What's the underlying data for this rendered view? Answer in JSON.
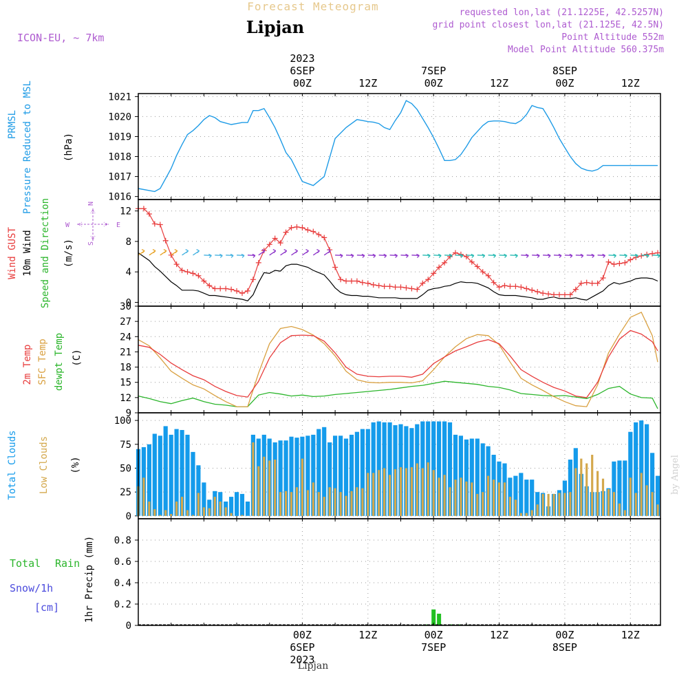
{
  "header": {
    "title": "Forecast Meteogram",
    "location": "Lipjan",
    "model": "ICON-EU, ~ 7km",
    "requested": "requested lon,lat (21.1225E, 42.5257N)",
    "grid_point": "grid point closest lon,lat (21.125E, 42.5N)",
    "altitude": "Point Altitude 552m",
    "model_altitude": "Model Point Altitude 560.375m",
    "watermark": "by Angel",
    "footer_location": "Lipjan"
  },
  "colors": {
    "pressure": "#1E9BE6",
    "gust": "#E83C3C",
    "wind": "#000000",
    "direction": "#2BB52B",
    "temp2m": "#E83C3C",
    "sfc": "#D9A040",
    "dewpt": "#2BB52B",
    "total_clouds": "#149BEB",
    "low_clouds": "#D4A84C",
    "rain": "#22C022",
    "snow": "#4B4BDD",
    "header_title": "#E6C88C",
    "info": "#AE5BD0"
  },
  "time_axis": {
    "top": [
      {
        "h": 30,
        "lines": [
          "2023",
          "6SEP",
          "00Z"
        ]
      },
      {
        "h": 42,
        "lines": [
          "12Z"
        ]
      },
      {
        "h": 54,
        "lines": [
          "7SEP",
          "00Z"
        ]
      },
      {
        "h": 66,
        "lines": [
          "12Z"
        ]
      },
      {
        "h": 78,
        "lines": [
          "8SEP",
          "00Z"
        ]
      },
      {
        "h": 90,
        "lines": [
          "12Z"
        ]
      }
    ],
    "bottom": [
      {
        "h": 30,
        "lines": [
          "00Z",
          "6SEP",
          "2023"
        ]
      },
      {
        "h": 42,
        "lines": [
          "12Z"
        ]
      },
      {
        "h": 54,
        "lines": [
          "00Z",
          "7SEP"
        ]
      },
      {
        "h": 66,
        "lines": [
          "12Z"
        ]
      },
      {
        "h": 78,
        "lines": [
          "00Z",
          "8SEP"
        ]
      },
      {
        "h": 90,
        "lines": [
          "12Z"
        ]
      }
    ]
  },
  "chart_data": [
    {
      "type": "line",
      "id": "pressure",
      "labels": [
        "PRMSL",
        "Pressure Reduced to MSL",
        "(hPa)"
      ],
      "ylim": [
        1015.85,
        1021.15
      ],
      "yticks": [
        1016,
        1017,
        1018,
        1019,
        1020,
        1021
      ],
      "x": [
        0,
        2,
        3,
        4,
        6,
        7,
        8,
        9,
        10,
        11,
        12,
        13,
        14,
        15,
        17,
        18,
        19,
        20,
        21,
        22,
        23,
        24,
        25,
        26,
        27,
        28,
        29,
        30,
        32,
        34,
        36,
        38,
        40,
        41,
        42,
        43,
        44,
        45,
        46,
        47,
        48,
        49,
        50,
        51,
        52,
        53,
        54,
        55,
        56,
        57,
        58,
        59,
        60,
        61,
        62,
        63,
        64,
        65,
        66,
        67,
        68,
        69,
        70,
        71,
        72,
        73,
        74,
        75,
        76,
        77,
        78,
        79,
        80,
        81,
        82,
        83,
        84,
        85,
        86,
        87,
        88,
        89,
        90,
        91,
        92,
        93,
        94,
        95
      ],
      "series": [
        {
          "values": [
            1016.4,
            1016.3,
            1016.25,
            1016.4,
            1017.4,
            1018.05,
            1018.6,
            1019.1,
            1019.3,
            1019.55,
            1019.85,
            1020.05,
            1019.95,
            1019.75,
            1019.6,
            1019.65,
            1019.7,
            1019.7,
            1020.3,
            1020.3,
            1020.4,
            1019.95,
            1019.45,
            1018.85,
            1018.2,
            1017.85,
            1017.3,
            1016.75,
            1016.55,
            1017.0,
            1018.9,
            1019.45,
            1019.85,
            1019.8,
            1019.75,
            1019.72,
            1019.65,
            1019.45,
            1019.35,
            1019.8,
            1020.2,
            1020.8,
            1020.65,
            1020.35,
            1019.9,
            1019.45,
            1018.95,
            1018.4,
            1017.8,
            1017.8,
            1017.85,
            1018.1,
            1018.5,
            1018.95,
            1019.25,
            1019.55,
            1019.75,
            1019.78,
            1019.78,
            1019.75,
            1019.68,
            1019.65,
            1019.8,
            1020.1,
            1020.55,
            1020.45,
            1020.4,
            1019.95,
            1019.45,
            1018.9,
            1018.45,
            1018.0,
            1017.65,
            1017.42,
            1017.32,
            1017.27,
            1017.35,
            1017.55,
            1017.55,
            1017.55,
            1017.55,
            1017.55,
            1017.55,
            1017.55,
            1017.55,
            1017.55,
            1017.55,
            1017.55
          ]
        }
      ]
    },
    {
      "type": "line",
      "id": "wind",
      "labels": [
        "Wind GUST",
        "10m Wind",
        "Speed and Direction",
        "(m/s)"
      ],
      "compass": {
        "n": "N",
        "w": "W",
        "e": "E",
        "s": "S"
      },
      "ylim": [
        -0.5,
        13.5
      ],
      "yticks": [
        0,
        4,
        8,
        12
      ],
      "x": [
        0,
        1,
        2,
        3,
        4,
        5,
        6,
        7,
        8,
        9,
        10,
        11,
        12,
        13,
        14,
        15,
        16,
        17,
        18,
        19,
        20,
        21,
        22,
        23,
        24,
        25,
        26,
        27,
        28,
        29,
        30,
        31,
        32,
        33,
        34,
        35,
        36,
        37,
        38,
        39,
        40,
        41,
        42,
        43,
        44,
        45,
        46,
        47,
        48,
        49,
        50,
        51,
        52,
        53,
        54,
        55,
        56,
        57,
        58,
        59,
        60,
        61,
        62,
        63,
        64,
        65,
        66,
        67,
        68,
        69,
        70,
        71,
        72,
        73,
        74,
        75,
        76,
        77,
        78,
        79,
        80,
        81,
        82,
        83,
        84,
        85,
        86,
        87,
        88,
        89,
        90,
        91,
        92,
        93,
        94,
        95
      ],
      "series": [
        {
          "name": "Wind GUST",
          "values": [
            12.3,
            12.3,
            11.6,
            10.3,
            10.2,
            8.1,
            6.2,
            5.0,
            4.2,
            4.0,
            3.8,
            3.5,
            2.8,
            2.2,
            1.8,
            1.8,
            1.8,
            1.7,
            1.5,
            1.2,
            1.5,
            3.0,
            5.2,
            6.8,
            7.6,
            8.4,
            7.8,
            9.2,
            9.8,
            9.9,
            9.8,
            9.5,
            9.3,
            8.9,
            8.5,
            6.9,
            4.6,
            3.0,
            2.8,
            2.8,
            2.8,
            2.6,
            2.5,
            2.3,
            2.2,
            2.1,
            2.1,
            2.0,
            2.0,
            1.9,
            1.8,
            1.7,
            2.5,
            3.0,
            3.8,
            4.6,
            5.2,
            6.0,
            6.5,
            6.3,
            6.0,
            5.3,
            4.7,
            4.0,
            3.5,
            2.6,
            2.0,
            2.2,
            2.1,
            2.1,
            2.0,
            1.8,
            1.6,
            1.4,
            1.2,
            1.1,
            1.0,
            1.0,
            1.0,
            1.0,
            1.7,
            2.5,
            2.6,
            2.5,
            2.5,
            3.2,
            5.3,
            5.0,
            5.1,
            5.2,
            5.6,
            5.9,
            6.1,
            6.3,
            6.4,
            6.5
          ]
        },
        {
          "name": "10m Wind",
          "values": [
            6.5,
            6.0,
            5.5,
            4.7,
            4.1,
            3.4,
            2.7,
            2.2,
            1.6,
            1.6,
            1.6,
            1.5,
            1.2,
            0.9,
            0.9,
            0.8,
            0.7,
            0.6,
            0.5,
            0.4,
            0.2,
            1.0,
            2.6,
            3.9,
            3.8,
            4.2,
            4.1,
            4.8,
            5.0,
            5.0,
            4.8,
            4.6,
            4.2,
            3.9,
            3.6,
            2.8,
            1.9,
            1.3,
            1.0,
            0.9,
            0.9,
            0.8,
            0.8,
            0.7,
            0.6,
            0.6,
            0.6,
            0.6,
            0.5,
            0.5,
            0.5,
            0.5,
            1.0,
            1.6,
            1.8,
            1.9,
            2.1,
            2.2,
            2.5,
            2.7,
            2.6,
            2.6,
            2.5,
            2.2,
            1.9,
            1.4,
            1.0,
            0.9,
            0.9,
            0.9,
            0.8,
            0.7,
            0.6,
            0.4,
            0.4,
            0.6,
            0.7,
            0.5,
            0.5,
            0.5,
            0.6,
            0.4,
            0.3,
            0.7,
            1.1,
            1.5,
            2.2,
            2.6,
            2.4,
            2.6,
            2.8,
            3.1,
            3.2,
            3.2,
            3.1,
            2.8
          ]
        }
      ]
    },
    {
      "type": "line",
      "id": "temperature",
      "labels": [
        "2m Temp",
        "SFC Temp",
        "dewpt Temp",
        "(C)"
      ],
      "ylim": [
        9,
        30
      ],
      "yticks": [
        9,
        12,
        15,
        18,
        21,
        24,
        27,
        30
      ],
      "x": [
        0,
        2,
        4,
        6,
        8,
        10,
        12,
        14,
        16,
        18,
        20,
        22,
        24,
        26,
        28,
        30,
        32,
        34,
        36,
        38,
        40,
        42,
        44,
        46,
        48,
        50,
        52,
        54,
        56,
        58,
        60,
        62,
        64,
        66,
        68,
        70,
        72,
        74,
        76,
        78,
        80,
        82,
        84,
        86,
        88,
        90,
        92,
        94,
        95
      ],
      "series": [
        {
          "name": "2m Temp",
          "values": [
            22.3,
            21.9,
            20.5,
            18.8,
            17.5,
            16.3,
            15.5,
            14.2,
            13.2,
            12.4,
            12.1,
            15.2,
            19.8,
            22.8,
            24.2,
            24.3,
            24.2,
            23.1,
            20.8,
            18.0,
            16.6,
            16.2,
            16.1,
            16.2,
            16.2,
            16.0,
            16.6,
            18.7,
            20.0,
            21.2,
            22.0,
            22.9,
            23.4,
            22.6,
            20.2,
            17.5,
            16.2,
            15.0,
            14.0,
            13.3,
            12.3,
            12.0,
            15.0,
            20.0,
            23.5,
            25.2,
            24.5,
            23.0,
            21.2
          ]
        },
        {
          "name": "SFC Temp",
          "values": [
            23.4,
            22.2,
            19.8,
            17.2,
            15.8,
            14.5,
            13.7,
            12.4,
            11.2,
            10.2,
            10.2,
            16.8,
            22.6,
            25.6,
            26.0,
            25.4,
            24.3,
            22.6,
            20.2,
            17.2,
            15.5,
            15.0,
            14.9,
            15.0,
            15.0,
            14.9,
            15.3,
            17.5,
            20.0,
            22.0,
            23.6,
            24.4,
            24.2,
            22.4,
            19.0,
            15.8,
            14.5,
            13.4,
            12.2,
            11.2,
            10.4,
            10.2,
            14.5,
            20.8,
            24.5,
            27.8,
            28.8,
            24.2,
            19.0
          ]
        },
        {
          "name": "dewpt Temp",
          "values": [
            12.3,
            11.8,
            11.2,
            10.8,
            11.4,
            11.9,
            11.2,
            10.7,
            10.5,
            10.2,
            10.2,
            12.5,
            13.0,
            12.7,
            12.3,
            12.5,
            12.2,
            12.3,
            12.6,
            12.8,
            13.0,
            13.2,
            13.4,
            13.6,
            13.9,
            14.2,
            14.4,
            14.8,
            15.2,
            15.0,
            14.8,
            14.6,
            14.2,
            14.0,
            13.5,
            12.8,
            12.6,
            12.4,
            12.3,
            12.4,
            12.1,
            11.8,
            12.6,
            13.8,
            14.2,
            12.7,
            12.0,
            11.9,
            9.8
          ]
        }
      ]
    },
    {
      "type": "bar",
      "id": "clouds",
      "labels": [
        "Total Clouds",
        "Low Clouds",
        "(%)"
      ],
      "ylim": [
        -3,
        108
      ],
      "yticks": [
        0,
        25,
        50,
        75,
        100
      ],
      "x": [
        0,
        1,
        2,
        3,
        4,
        5,
        6,
        7,
        8,
        9,
        10,
        11,
        12,
        13,
        14,
        15,
        16,
        17,
        18,
        19,
        20,
        21,
        22,
        23,
        24,
        25,
        26,
        27,
        28,
        29,
        30,
        31,
        32,
        33,
        34,
        35,
        36,
        37,
        38,
        39,
        40,
        41,
        42,
        43,
        44,
        45,
        46,
        47,
        48,
        49,
        50,
        51,
        52,
        53,
        54,
        55,
        56,
        57,
        58,
        59,
        60,
        61,
        62,
        63,
        64,
        65,
        66,
        67,
        68,
        69,
        70,
        71,
        72,
        73,
        74,
        75,
        76,
        77,
        78,
        79,
        80,
        81,
        82,
        83,
        84,
        85,
        86,
        87,
        88,
        89,
        90,
        91,
        92,
        93,
        94,
        95
      ],
      "series": [
        {
          "name": "Total Clouds",
          "values": [
            70,
            72,
            75,
            86,
            84,
            94,
            85,
            91,
            90,
            85,
            67,
            53,
            35,
            17,
            26,
            25,
            15,
            20,
            25,
            23,
            15,
            85,
            81,
            85,
            81,
            77,
            79,
            79,
            83,
            82,
            83,
            84,
            85,
            91,
            93,
            77,
            84,
            84,
            81,
            85,
            88,
            91,
            91,
            98,
            99,
            98,
            98,
            95,
            96,
            94,
            92,
            96,
            99,
            99,
            99,
            99,
            99,
            98,
            85,
            84,
            80,
            81,
            81,
            76,
            73,
            64,
            57,
            55,
            40,
            42,
            45,
            38,
            38,
            25,
            24,
            10,
            23,
            27,
            37,
            59,
            71,
            44,
            31,
            25,
            25,
            26,
            29,
            57,
            58,
            58,
            88,
            98,
            100,
            96,
            66,
            42
          ]
        },
        {
          "name": "Low Clouds",
          "values": [
            31,
            40,
            15,
            7,
            1,
            6,
            2,
            15,
            20,
            6,
            1,
            24,
            9,
            8,
            20,
            15,
            9,
            3,
            0,
            1,
            0,
            77,
            52,
            62,
            58,
            59,
            25,
            26,
            25,
            30,
            60,
            27,
            35,
            25,
            20,
            30,
            29,
            25,
            21,
            26,
            30,
            29,
            45,
            45,
            48,
            50,
            43,
            49,
            51,
            50,
            51,
            55,
            50,
            56,
            48,
            40,
            43,
            30,
            38,
            40,
            36,
            35,
            23,
            25,
            42,
            38,
            35,
            35,
            20,
            17,
            3,
            3,
            6,
            12,
            23,
            23,
            23,
            24,
            24,
            25,
            50,
            60,
            55,
            64,
            47,
            39,
            28,
            25,
            13,
            6,
            40,
            24,
            45,
            32,
            25,
            12
          ]
        }
      ]
    },
    {
      "type": "bar",
      "id": "precip",
      "labels": [
        "Total",
        "Rain",
        "Snow/1h",
        "[cm]",
        "1hr Precip (mm)"
      ],
      "ylim": [
        0,
        1.0
      ],
      "yticks": [
        0,
        0.2,
        0.4,
        0.6,
        0.8
      ],
      "yticklabels": [
        "0",
        "0.2",
        "0.4",
        "0.6",
        "0.8"
      ],
      "x": [
        52,
        53,
        54,
        55,
        56,
        57,
        58,
        59,
        60
      ],
      "series": [
        {
          "name": "Rain",
          "values": [
            0.005,
            0.01,
            0.15,
            0.11,
            0.005,
            0.01,
            0.005,
            0.01,
            0.005
          ]
        }
      ]
    }
  ]
}
